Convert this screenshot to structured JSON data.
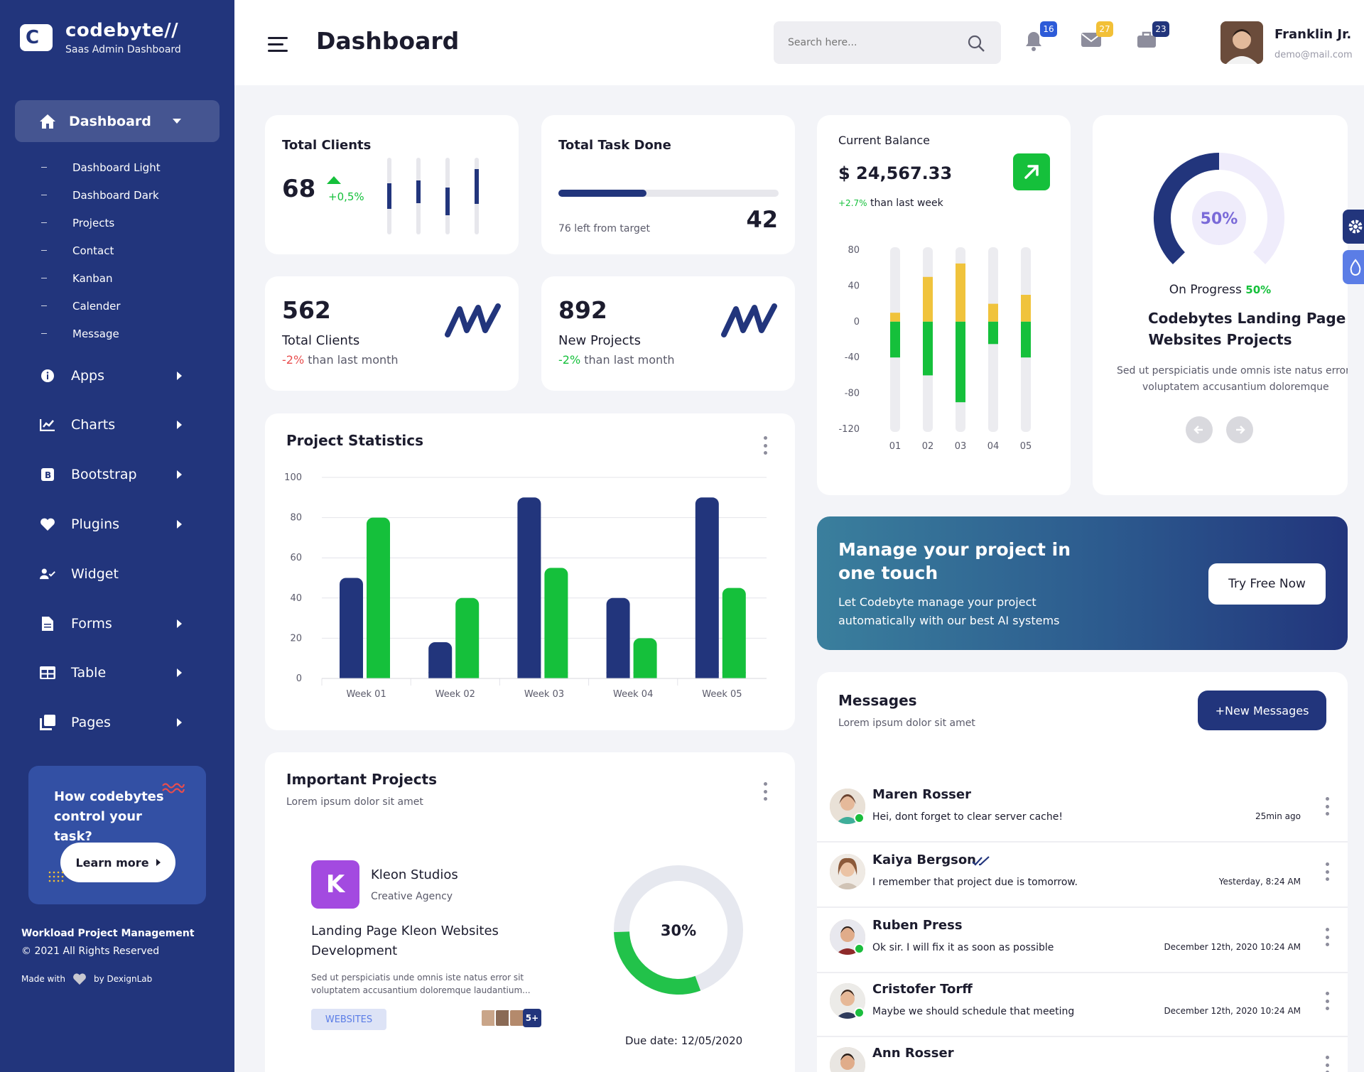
{
  "brand": {
    "name": "codebyte//",
    "subtitle": "Saas Admin Dashboard",
    "logo_letter": "C"
  },
  "sidebar": {
    "active": {
      "label": "Dashboard",
      "icon": "home-icon"
    },
    "submenu": [
      "Dashboard Light",
      "Dashboard Dark",
      "Projects",
      "Contact",
      "Kanban",
      "Calender",
      "Message"
    ],
    "items": [
      {
        "label": "Apps",
        "icon": "info-icon",
        "has_children": true
      },
      {
        "label": "Charts",
        "icon": "chart-icon",
        "has_children": true
      },
      {
        "label": "Bootstrap",
        "icon": "bootstrap-icon",
        "has_children": true
      },
      {
        "label": "Plugins",
        "icon": "heart-icon",
        "has_children": true
      },
      {
        "label": "Widget",
        "icon": "user-check-icon",
        "has_children": false
      },
      {
        "label": "Forms",
        "icon": "file-icon",
        "has_children": true
      },
      {
        "label": "Table",
        "icon": "table-icon",
        "has_children": true
      },
      {
        "label": "Pages",
        "icon": "pages-icon",
        "has_children": true
      }
    ],
    "promo": {
      "text": "How codebytes control your task?",
      "button": "Learn more"
    },
    "footer": {
      "title": "Workload Project Management",
      "copyright": "© 2021 All Rights Reserved",
      "made_with": "Made with",
      "by": "by DexignLab"
    }
  },
  "header": {
    "title": "Dashboard",
    "search_placeholder": "Search here...",
    "notifications": {
      "count": "16",
      "color": "#2d5bd8"
    },
    "messages": {
      "count": "27",
      "color": "#f2c037"
    },
    "tasks": {
      "count": "23",
      "color": "#22357c"
    },
    "user": {
      "name": "Franklin Jr.",
      "email": "demo@mail.com"
    }
  },
  "total_clients_card": {
    "title": "Total Clients",
    "value": "68",
    "change": "+0,5%",
    "bars": [
      0.33,
      0.3,
      0.36,
      0.45
    ]
  },
  "task_done_card": {
    "title": "Total Task Done",
    "progress": 0.4,
    "left_text": "76 left from target",
    "value": "42"
  },
  "clients_card": {
    "value": "562",
    "label": "Total Clients",
    "change": "-2%",
    "change_suffix": "than last month"
  },
  "projects_card": {
    "value": "892",
    "label": "New Projects",
    "change": "-2%",
    "change_suffix": "than last month"
  },
  "balance_card": {
    "title": "Current Balance",
    "value": "$ 24,567.33",
    "change": "+2.7%",
    "change_suffix": "than last week",
    "chart_data": {
      "type": "bar",
      "categories": [
        "01",
        "02",
        "03",
        "04",
        "05"
      ],
      "y_ticks": [
        "80",
        "40",
        "0",
        "-40",
        "-80",
        "-120"
      ],
      "ylim": [
        -120,
        80
      ],
      "series": [
        {
          "color": "#f0c33c",
          "values": [
            10,
            50,
            65,
            20,
            30
          ]
        },
        {
          "color": "#15c03b",
          "values": [
            -40,
            -60,
            -90,
            -25,
            -40
          ]
        }
      ]
    }
  },
  "progress_card": {
    "percent_label": "50%",
    "progress": 0.5,
    "status": "On Progress",
    "status_value": "50%",
    "title_line1": "Codebytes Landing Page",
    "title_line2": "Websites Projects",
    "desc_line1": "Sed ut perspiciatis unde omnis iste natus error",
    "desc_line2": "voluptatem accusantium doloremque"
  },
  "project_statistics": {
    "title": "Project Statistics",
    "chart_data": {
      "type": "bar",
      "categories": [
        "Week 01",
        "Week 02",
        "Week 03",
        "Week 04",
        "Week 05"
      ],
      "y_ticks": [
        "100",
        "80",
        "60",
        "40",
        "20",
        "0"
      ],
      "ylim": [
        0,
        100
      ],
      "series": [
        {
          "color": "#22357c",
          "values": [
            50,
            18,
            90,
            40,
            90
          ]
        },
        {
          "color": "#15c03b",
          "values": [
            80,
            40,
            55,
            20,
            45
          ]
        }
      ]
    }
  },
  "manage_banner": {
    "title_line1": "Manage your project in",
    "title_line2": "one touch",
    "text_line1": "Let Codebyte manage your project",
    "text_line2": "automatically with our best AI systems",
    "button": "Try Free Now"
  },
  "important_projects": {
    "title": "Important Projects",
    "subtitle": "Lorem ipsum dolor sit amet",
    "company": "Kleon Studios",
    "company_type": "Creative Agency",
    "logo_letter": "K",
    "project_line1": "Landing Page Kleon Websites",
    "project_line2": "Development",
    "desc_line1": "Sed ut perspiciatis unde omnis iste natus error sit",
    "desc_line2": "voluptatem accusantium doloremque laudantium...",
    "tag": "WEBSITES",
    "more_members": "5+",
    "progress": 0.3,
    "progress_label": "30%",
    "due": "Due date: 12/05/2020"
  },
  "messages": {
    "title": "Messages",
    "subtitle": "Lorem ipsum dolor sit amet",
    "button": "+New Messages",
    "items": [
      {
        "name": "Maren Rosser",
        "text": "Hei, dont forget to clear server cache!",
        "time": "25min ago"
      },
      {
        "name": "Kaiya Bergson",
        "text": "I remember that project due is tomorrow.",
        "time": "Yesterday, 8:24 AM"
      },
      {
        "name": "Ruben Press",
        "text": "Ok sir. I will fix it as soon as possible",
        "time": "December 12th, 2020 10:24 AM"
      },
      {
        "name": "Cristofer Torff",
        "text": "Maybe we should schedule that meeting",
        "time": "December 12th, 2020 10:24 AM"
      },
      {
        "name": "Ann Rosser",
        "text": "",
        "time": ""
      }
    ]
  }
}
